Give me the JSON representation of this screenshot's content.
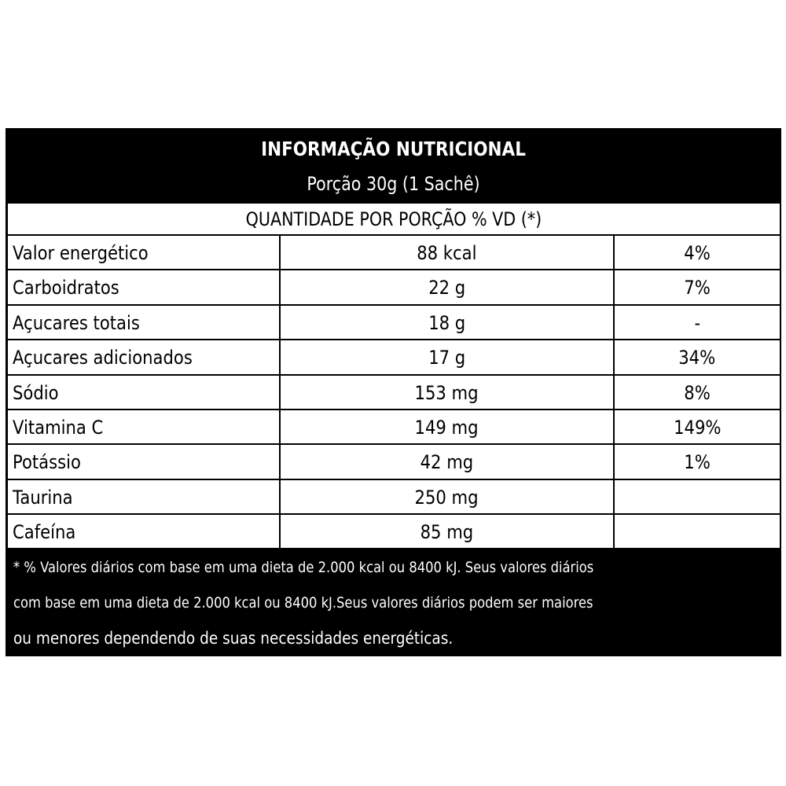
{
  "header": {
    "title": "INFORMAÇÃO NUTRICIONAL",
    "portion": "Porção 30g (1 Sachê)"
  },
  "subheader": "QUANTIDADE POR PORÇÃO % VD (*)",
  "rows": [
    {
      "name": "Valor energético",
      "amount": "88 kcal",
      "vd": "4%"
    },
    {
      "name": "Carboidratos",
      "amount": "22 g",
      "vd": "7%"
    },
    {
      "name": "Açucares totais",
      "amount": "18 g",
      "vd": "-"
    },
    {
      "name": "Açucares adicionados",
      "amount": "17 g",
      "vd": "34%"
    },
    {
      "name": "Sódio",
      "amount": "153 mg",
      "vd": "8%"
    },
    {
      "name": "Vitamina C",
      "amount": "149 mg",
      "vd": "149%"
    },
    {
      "name": "Potássio",
      "amount": "42 mg",
      "vd": "1%"
    },
    {
      "name": "Taurina",
      "amount": "250 mg",
      "vd": ""
    },
    {
      "name": "Cafeína",
      "amount": "85 mg",
      "vd": ""
    }
  ],
  "footer": {
    "line1": "* % Valores diários com base em uma dieta de 2.000 kcal ou 8400 kJ. Seus valores diários",
    "line2": "com base em uma dieta de 2.000 kcal ou 8400 kJ.Seus valores diários podem ser maiores",
    "line3": "ou menores dependendo de suas necessidades energéticas."
  },
  "colors": {
    "background": "#ffffff",
    "panel": "#000000",
    "text_light": "#ffffff",
    "text_dark": "#000000"
  }
}
